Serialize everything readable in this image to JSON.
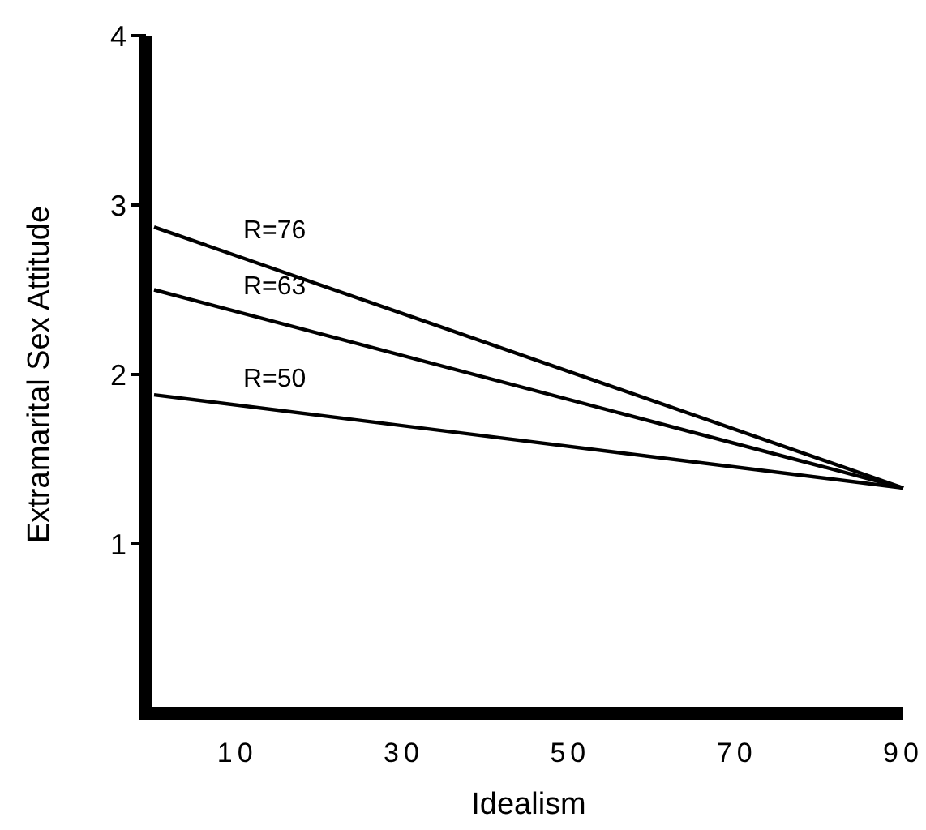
{
  "chart_data": {
    "type": "line",
    "xlabel": "Idealism",
    "ylabel": "Extramarital Sex Attitude",
    "xlim": [
      0,
      90
    ],
    "xticks": [
      10,
      30,
      50,
      70,
      90
    ],
    "ylim": [
      0,
      4
    ],
    "yticks": [
      1,
      2,
      3,
      4
    ],
    "grid": false,
    "marker": "none",
    "line_style": "solid",
    "x": [
      0,
      90
    ],
    "series": [
      {
        "name": "R=76",
        "color": "#000000",
        "values": [
          2.87,
          1.33
        ]
      },
      {
        "name": "R=63",
        "color": "#000000",
        "values": [
          2.5,
          1.33
        ]
      },
      {
        "name": "R=50",
        "color": "#000000",
        "values": [
          1.88,
          1.33
        ]
      }
    ]
  }
}
